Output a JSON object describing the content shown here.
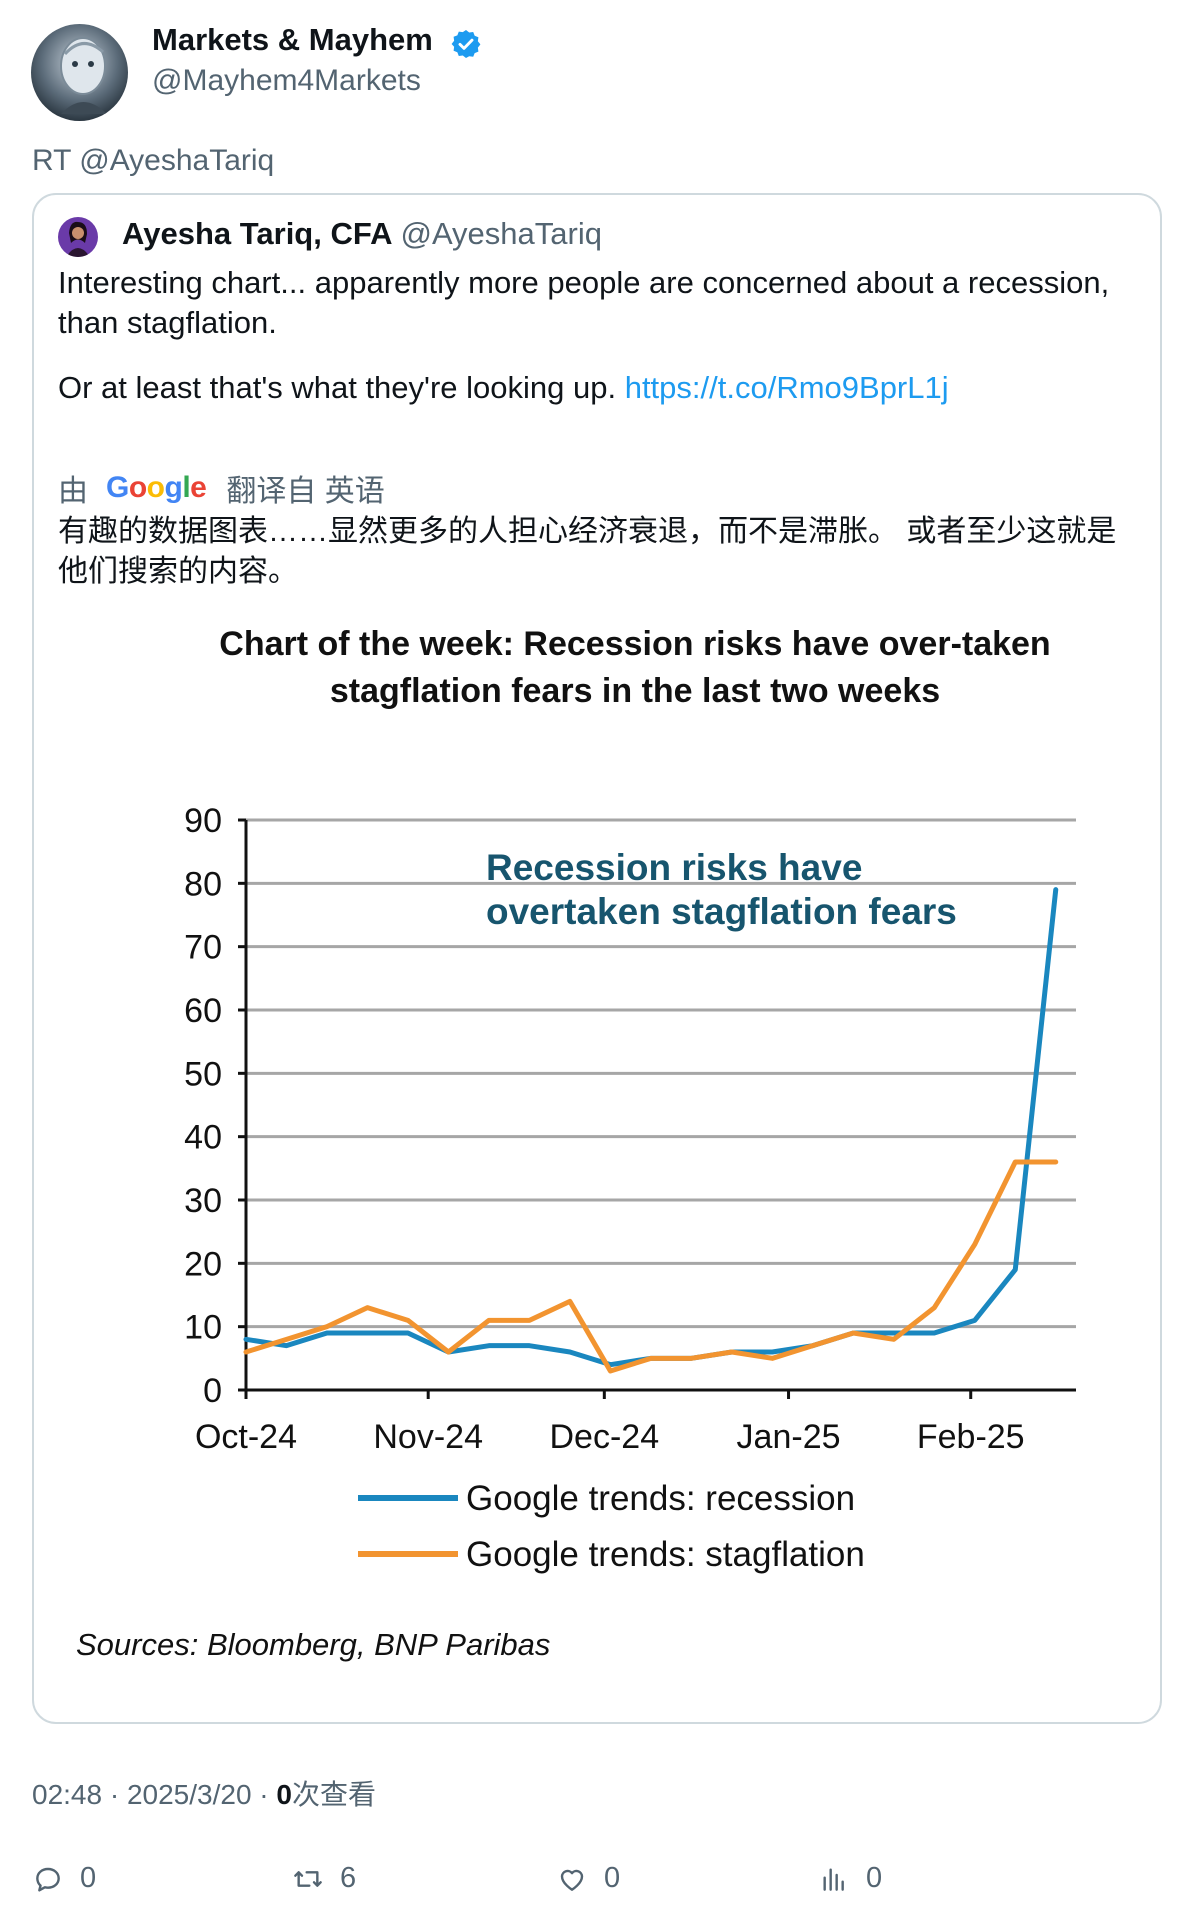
{
  "tweet": {
    "author_name": "Markets & Mayhem",
    "author_handle": "@Mayhem4Markets",
    "retweet_label": "RT @AyeshaTariq",
    "timestamp": "02:48 · 2025/3/20 · ",
    "views_count": "0",
    "views_label": "次查看"
  },
  "quoted": {
    "author_name": "Ayesha Tariq, CFA",
    "author_handle": "@AyeshaTariq",
    "text_line1": "Interesting chart... apparently more people are concerned about a recession, than stagflation.",
    "text_line2": "Or at least that's what they're looking up.",
    "link": "https://t.co/Rmo9BprL1j",
    "translation_prefix": "由",
    "translation_brand": "Google",
    "translation_suffix": "翻译自 英语",
    "translation_text": "有趣的数据图表……显然更多的人担心经济衰退，而不是滞胀。 或者至少这就是他们搜索的内容。"
  },
  "actions": {
    "reply_count": "0",
    "retweet_count": "6",
    "like_count": "0",
    "views_count": "0"
  },
  "chart_data": {
    "type": "line",
    "title_line1": "Chart of the week: Recession risks have over-taken",
    "title_line2": "stagflation fears in the last two weeks",
    "annotation_line1": "Recession risks have",
    "annotation_line2": "overtaken stagflation fears",
    "source": "Sources: Bloomberg, BNP Paribas",
    "ylim": [
      0,
      90
    ],
    "yticks": [
      "0",
      "10",
      "20",
      "30",
      "40",
      "50",
      "60",
      "70",
      "80",
      "90"
    ],
    "xticks": [
      "Oct-24",
      "Nov-24",
      "Dec-24",
      "Jan-25",
      "Feb-25"
    ],
    "x_tick_positions": [
      0,
      4.5,
      8.85,
      13.4,
      17.9
    ],
    "x_max": 20.5,
    "grid": true,
    "legend_position": "bottom",
    "series": [
      {
        "name": "Google trends: recession",
        "color": "#1a87bf",
        "values": [
          8,
          7,
          9,
          9,
          9,
          6,
          7,
          7,
          6,
          4,
          5,
          5,
          6,
          6,
          7,
          9,
          9,
          9,
          11,
          19,
          79
        ]
      },
      {
        "name": "Google trends: stagflation",
        "color": "#f29430",
        "values": [
          6,
          8,
          10,
          13,
          11,
          6,
          11,
          11,
          14,
          3,
          5,
          5,
          6,
          5,
          7,
          9,
          8,
          13,
          23,
          36,
          36
        ]
      }
    ]
  }
}
